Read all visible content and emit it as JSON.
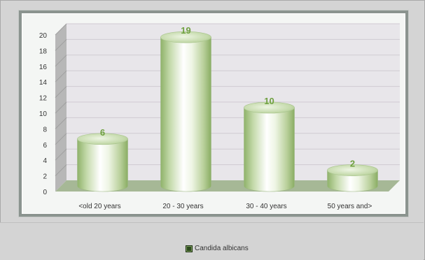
{
  "chart_data": {
    "type": "bar",
    "categories": [
      "<old 20 years",
      "20 - 30 years",
      "30 - 40 years",
      "50 years and>"
    ],
    "series": [
      {
        "name": "Candida albicans",
        "values": [
          6,
          19,
          10,
          2
        ]
      }
    ],
    "ylim": [
      0,
      20
    ],
    "yticks": [
      0,
      2,
      4,
      6,
      8,
      10,
      12,
      14,
      16,
      18,
      20
    ],
    "grid": true,
    "legend_position": "bottom",
    "colors": {
      "bar_light": "#ffffff",
      "bar_mid": "#d9e8c6",
      "bar_dark": "#8fb26a",
      "data_label": "#6fa040",
      "floor": "#a6b896",
      "wall": "#e8e6ea",
      "side_wall": "#b7b7b7"
    }
  },
  "legend": {
    "label": "Candida albicans"
  }
}
